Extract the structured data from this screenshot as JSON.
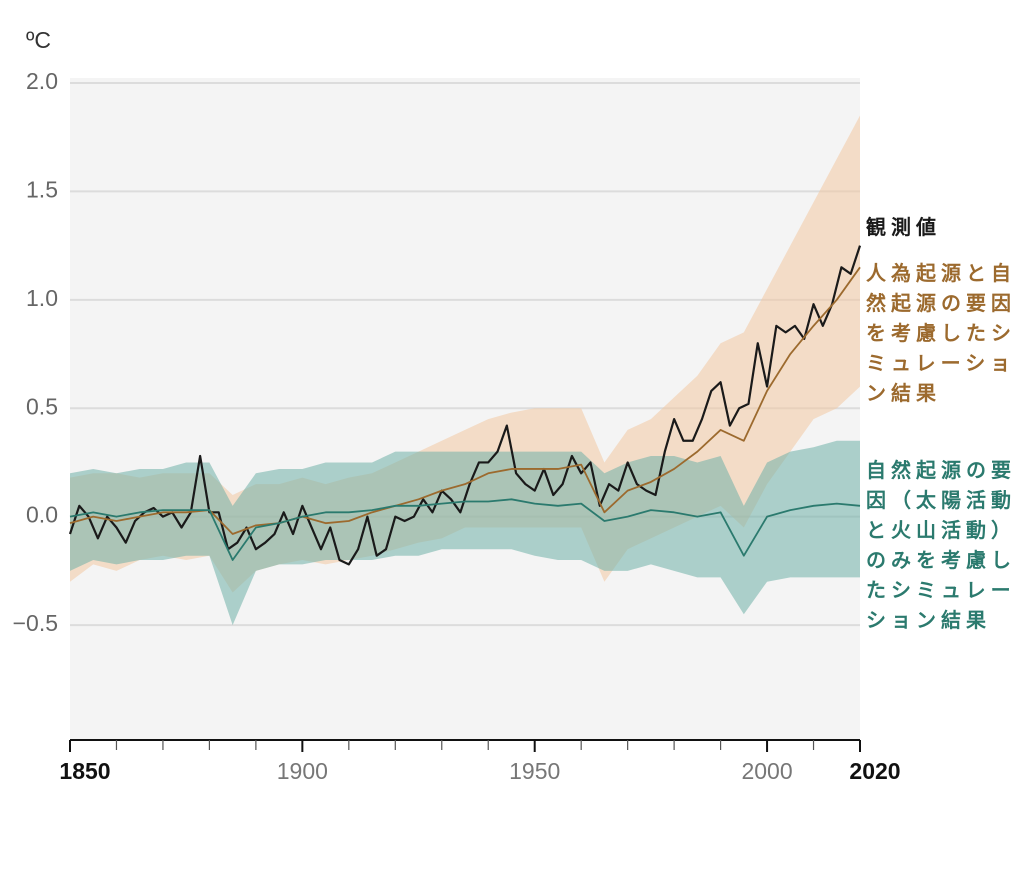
{
  "chart_data": {
    "type": "line",
    "ylabel": "ºC",
    "xlim": [
      1850,
      2020
    ],
    "ylim": [
      -1.03,
      2.0
    ],
    "yticks": [
      {
        "value": 2.0,
        "label": "2.0"
      },
      {
        "value": 1.5,
        "label": "1.5"
      },
      {
        "value": 1.0,
        "label": "1.0"
      },
      {
        "value": 0.5,
        "label": "0.5"
      },
      {
        "value": 0.0,
        "label": "0.0"
      },
      {
        "value": -0.5,
        "label": "−0.5"
      }
    ],
    "xticks": [
      1850,
      1900,
      1950,
      2000,
      2020
    ],
    "xtick_bold": [
      1850,
      2020
    ],
    "xminorticks": [
      1860,
      1870,
      1880,
      1890,
      1910,
      1920,
      1930,
      1940,
      1960,
      1970,
      1980,
      1990,
      2010
    ],
    "grid": true,
    "series": [
      {
        "name": "観測値",
        "color": "#1a1a1a",
        "x": [
          1850,
          1852,
          1854,
          1856,
          1858,
          1860,
          1862,
          1864,
          1866,
          1868,
          1870,
          1872,
          1874,
          1876,
          1878,
          1880,
          1882,
          1884,
          1886,
          1888,
          1890,
          1892,
          1894,
          1896,
          1898,
          1900,
          1902,
          1904,
          1906,
          1908,
          1910,
          1912,
          1914,
          1916,
          1918,
          1920,
          1922,
          1924,
          1926,
          1928,
          1930,
          1932,
          1934,
          1936,
          1938,
          1940,
          1942,
          1944,
          1946,
          1948,
          1950,
          1952,
          1954,
          1956,
          1958,
          1960,
          1962,
          1964,
          1966,
          1968,
          1970,
          1972,
          1974,
          1976,
          1978,
          1980,
          1982,
          1984,
          1986,
          1988,
          1990,
          1992,
          1994,
          1996,
          1998,
          2000,
          2002,
          2004,
          2006,
          2008,
          2010,
          2012,
          2014,
          2016,
          2018,
          2020
        ],
        "values": [
          -0.08,
          0.05,
          0.0,
          -0.1,
          0.0,
          -0.05,
          -0.12,
          -0.02,
          0.02,
          0.04,
          0.0,
          0.02,
          -0.05,
          0.02,
          0.28,
          0.02,
          0.02,
          -0.15,
          -0.12,
          -0.05,
          -0.15,
          -0.12,
          -0.08,
          0.02,
          -0.08,
          0.05,
          -0.05,
          -0.15,
          -0.05,
          -0.2,
          -0.22,
          -0.15,
          0.0,
          -0.18,
          -0.15,
          0.0,
          -0.02,
          0.0,
          0.08,
          0.02,
          0.12,
          0.08,
          0.02,
          0.15,
          0.25,
          0.25,
          0.3,
          0.42,
          0.2,
          0.15,
          0.12,
          0.22,
          0.1,
          0.15,
          0.28,
          0.2,
          0.25,
          0.05,
          0.15,
          0.12,
          0.25,
          0.15,
          0.12,
          0.1,
          0.3,
          0.45,
          0.35,
          0.35,
          0.45,
          0.58,
          0.62,
          0.42,
          0.5,
          0.52,
          0.8,
          0.6,
          0.88,
          0.85,
          0.88,
          0.82,
          0.98,
          0.88,
          0.98,
          1.15,
          1.12,
          1.25
        ]
      },
      {
        "name": "人為起源と自然起源の要因を考慮したシミュレーション結果",
        "color": "#9c6a2e",
        "band_color": "#f2c9a2",
        "x": [
          1850,
          1855,
          1860,
          1865,
          1870,
          1875,
          1880,
          1885,
          1890,
          1895,
          1900,
          1905,
          1910,
          1915,
          1920,
          1925,
          1930,
          1935,
          1940,
          1945,
          1950,
          1955,
          1960,
          1965,
          1970,
          1975,
          1980,
          1985,
          1990,
          1995,
          2000,
          2005,
          2010,
          2015,
          2020
        ],
        "values": [
          -0.03,
          0.0,
          -0.02,
          0.0,
          0.02,
          0.02,
          0.03,
          -0.08,
          -0.04,
          -0.03,
          0.0,
          -0.03,
          -0.02,
          0.02,
          0.05,
          0.08,
          0.12,
          0.15,
          0.2,
          0.22,
          0.22,
          0.22,
          0.24,
          0.02,
          0.12,
          0.16,
          0.22,
          0.3,
          0.4,
          0.35,
          0.58,
          0.75,
          0.88,
          1.0,
          1.15
        ],
        "upper": [
          0.18,
          0.2,
          0.2,
          0.18,
          0.2,
          0.2,
          0.2,
          0.1,
          0.15,
          0.15,
          0.18,
          0.15,
          0.18,
          0.2,
          0.25,
          0.3,
          0.35,
          0.4,
          0.45,
          0.48,
          0.5,
          0.5,
          0.5,
          0.25,
          0.4,
          0.45,
          0.55,
          0.65,
          0.8,
          0.85,
          1.05,
          1.25,
          1.45,
          1.65,
          1.85
        ],
        "lower": [
          -0.3,
          -0.22,
          -0.25,
          -0.2,
          -0.18,
          -0.2,
          -0.18,
          -0.35,
          -0.25,
          -0.22,
          -0.2,
          -0.22,
          -0.2,
          -0.18,
          -0.15,
          -0.12,
          -0.1,
          -0.05,
          -0.05,
          -0.05,
          -0.05,
          -0.05,
          -0.05,
          -0.3,
          -0.15,
          -0.1,
          -0.05,
          0.0,
          0.05,
          -0.05,
          0.15,
          0.3,
          0.45,
          0.5,
          0.6
        ]
      },
      {
        "name": "自然起源の要因（太陽活動と火山活動）のみを考慮したシミュレーション結果",
        "color": "#2b7a6e",
        "band_color": "#6fb0a8",
        "x": [
          1850,
          1855,
          1860,
          1865,
          1870,
          1875,
          1880,
          1885,
          1890,
          1895,
          1900,
          1905,
          1910,
          1915,
          1920,
          1925,
          1930,
          1935,
          1940,
          1945,
          1950,
          1955,
          1960,
          1965,
          1970,
          1975,
          1980,
          1985,
          1990,
          1995,
          2000,
          2005,
          2010,
          2015,
          2020
        ],
        "values": [
          0.0,
          0.02,
          0.0,
          0.02,
          0.03,
          0.03,
          0.03,
          -0.2,
          -0.05,
          -0.03,
          0.0,
          0.02,
          0.02,
          0.03,
          0.05,
          0.05,
          0.06,
          0.07,
          0.07,
          0.08,
          0.06,
          0.05,
          0.06,
          -0.02,
          0.0,
          0.03,
          0.02,
          0.0,
          0.02,
          -0.18,
          0.0,
          0.03,
          0.05,
          0.06,
          0.05
        ],
        "upper": [
          0.2,
          0.22,
          0.2,
          0.22,
          0.22,
          0.25,
          0.25,
          0.05,
          0.2,
          0.22,
          0.22,
          0.25,
          0.25,
          0.25,
          0.3,
          0.3,
          0.3,
          0.3,
          0.3,
          0.3,
          0.3,
          0.3,
          0.3,
          0.2,
          0.25,
          0.28,
          0.28,
          0.25,
          0.28,
          0.05,
          0.25,
          0.3,
          0.32,
          0.35,
          0.35
        ],
        "lower": [
          -0.25,
          -0.2,
          -0.22,
          -0.2,
          -0.2,
          -0.18,
          -0.18,
          -0.5,
          -0.25,
          -0.22,
          -0.22,
          -0.2,
          -0.2,
          -0.2,
          -0.18,
          -0.18,
          -0.15,
          -0.15,
          -0.15,
          -0.15,
          -0.18,
          -0.2,
          -0.2,
          -0.25,
          -0.25,
          -0.22,
          -0.25,
          -0.28,
          -0.28,
          -0.45,
          -0.3,
          -0.28,
          -0.28,
          -0.28,
          -0.28
        ]
      }
    ]
  }
}
